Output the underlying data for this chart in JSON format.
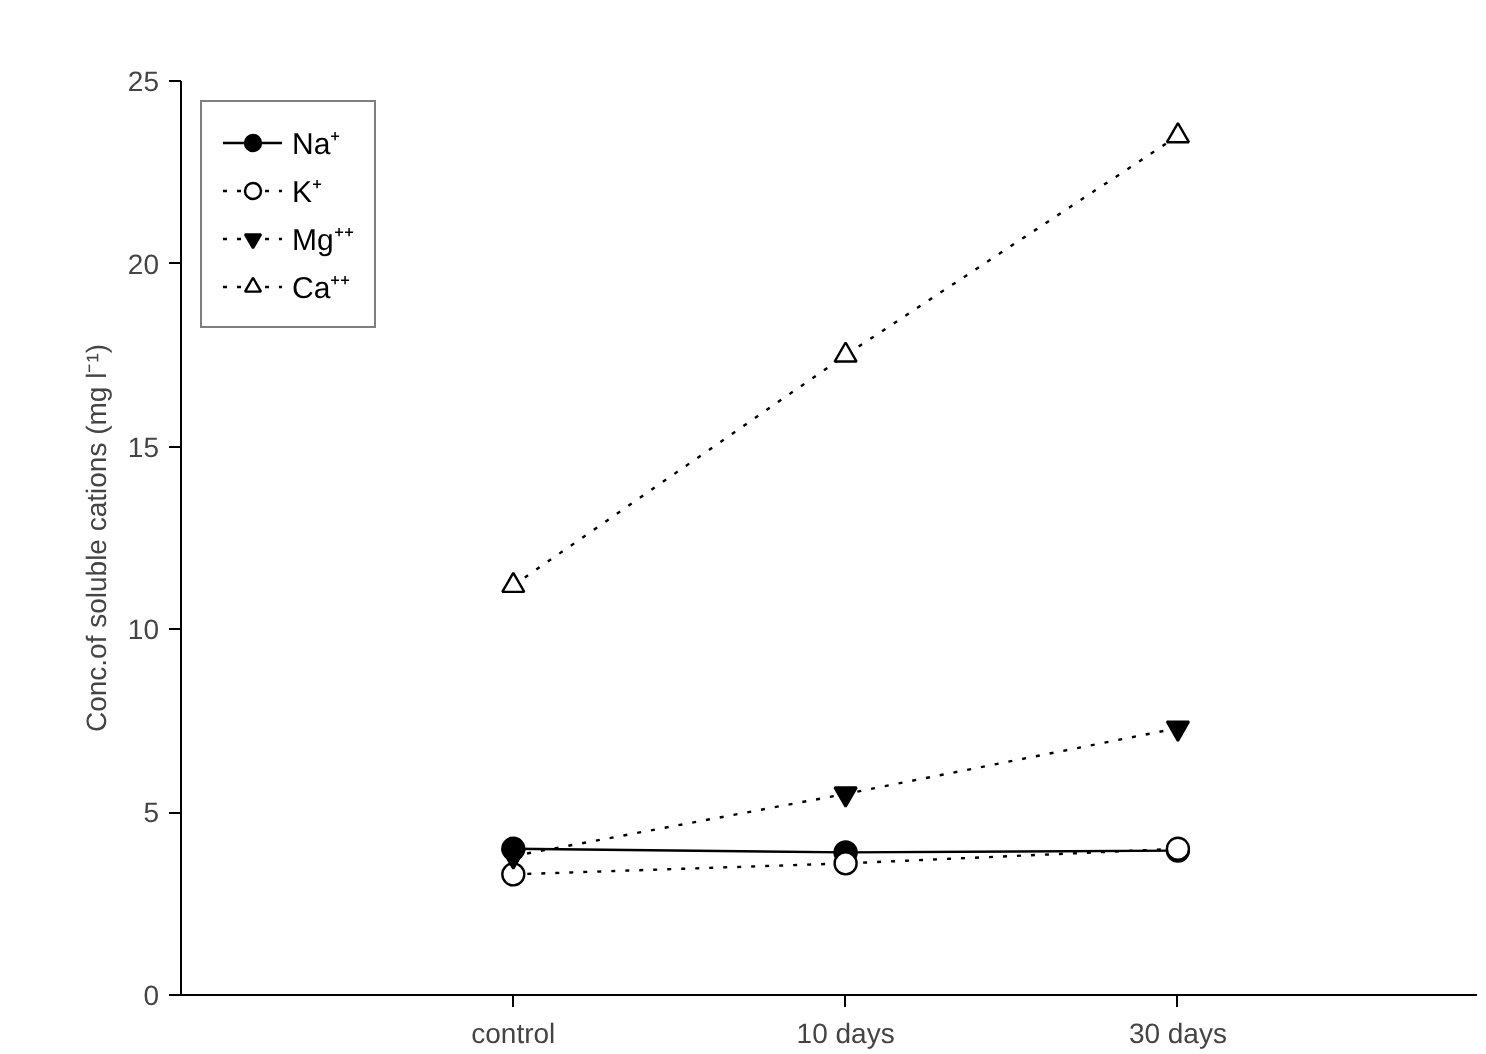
{
  "chart_data": {
    "type": "line",
    "ylabel": "Conc.of soluble cations (mg l⁻¹)",
    "categories": [
      "control",
      "10 days",
      "30 days"
    ],
    "series": [
      {
        "name": "Na⁺",
        "color": "#000000",
        "values": [
          4.0,
          3.9,
          3.95
        ],
        "marker": "circle",
        "line_style": "solid"
      },
      {
        "name": "K⁺",
        "color": "#000000",
        "values": [
          3.3,
          3.6,
          4.0
        ],
        "marker": "circle_open",
        "line_style": "dotted"
      },
      {
        "name": "Mg⁺⁺",
        "color": "#000000",
        "values": [
          3.8,
          5.5,
          7.3
        ],
        "marker": "triangle_down",
        "line_style": "dotted"
      },
      {
        "name": "Ca⁺⁺",
        "color": "#000000",
        "values": [
          11.2,
          17.5,
          23.5
        ],
        "marker": "triangle_open",
        "line_style": "dotted"
      }
    ],
    "ylim": [
      0,
      25
    ],
    "yticks": [
      0,
      5,
      10,
      15,
      20,
      25
    ],
    "grid": false,
    "legend": "top left"
  }
}
